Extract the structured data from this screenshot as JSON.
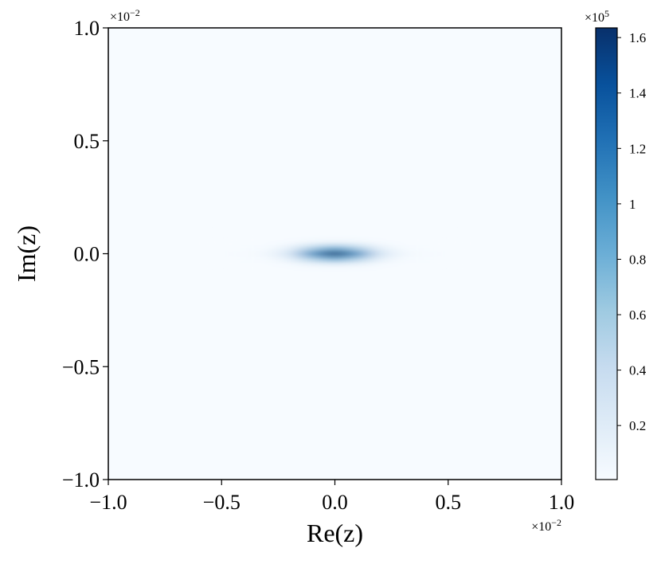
{
  "chart_data": {
    "type": "heatmap",
    "x_label": "Re(z)",
    "y_label": "Im(z)",
    "x_offset": {
      "base": "×10",
      "exp": "−2"
    },
    "y_offset": {
      "base": "×10",
      "exp": "−2"
    },
    "colorbar_offset": {
      "base": "×10",
      "exp": "5"
    },
    "x": [
      -0.5,
      -0.4,
      -0.3,
      -0.2,
      -0.1,
      0,
      0.1,
      0.2,
      0.3,
      0.4,
      0.5
    ],
    "y": [
      0.075,
      0.05,
      0.025,
      0,
      -0.025,
      -0.05,
      -0.075
    ],
    "values": [
      [
        0,
        0,
        0,
        0.001,
        0.002,
        0.003,
        0.002,
        0.001,
        0,
        0,
        0
      ],
      [
        0,
        0.001,
        0.003,
        0.016,
        0.062,
        0.097,
        0.062,
        0.016,
        0.003,
        0.001,
        0
      ],
      [
        0.002,
        0.006,
        0.024,
        0.13,
        0.51,
        0.81,
        0.51,
        0.13,
        0.024,
        0.006,
        0.002
      ],
      [
        0.003,
        0.013,
        0.05,
        0.27,
        1.05,
        1.65,
        1.05,
        0.27,
        0.05,
        0.013,
        0.003
      ],
      [
        0.002,
        0.006,
        0.024,
        0.13,
        0.51,
        0.81,
        0.51,
        0.13,
        0.024,
        0.006,
        0.002
      ],
      [
        0,
        0.001,
        0.003,
        0.016,
        0.062,
        0.097,
        0.062,
        0.016,
        0.003,
        0.001,
        0
      ],
      [
        0,
        0,
        0,
        0.001,
        0.002,
        0.003,
        0.002,
        0.001,
        0,
        0,
        0
      ]
    ],
    "xlim": [
      -1,
      1
    ],
    "ylim": [
      -1,
      1
    ],
    "xticks": [
      {
        "value": -1,
        "label": "−1.0"
      },
      {
        "value": -0.5,
        "label": "−0.5"
      },
      {
        "value": 0,
        "label": "0.0"
      },
      {
        "value": 0.5,
        "label": "0.5"
      },
      {
        "value": 1,
        "label": "1.0"
      }
    ],
    "yticks": [
      {
        "value": -1,
        "label": "−1.0"
      },
      {
        "value": -0.5,
        "label": "−0.5"
      },
      {
        "value": 0,
        "label": "0.0"
      },
      {
        "value": 0.5,
        "label": "0.5"
      },
      {
        "value": 1,
        "label": "1.0"
      }
    ],
    "clim": [
      0.005,
      1.635
    ],
    "cticks": [
      0.2,
      0.4,
      0.6,
      0.8,
      1.0,
      1.2,
      1.4,
      1.6
    ],
    "colormap": [
      "#f7fbff",
      "#deebf7",
      "#c6dbef",
      "#9ecae1",
      "#6baed6",
      "#4292c6",
      "#2171b5",
      "#08519c",
      "#08306b"
    ]
  }
}
